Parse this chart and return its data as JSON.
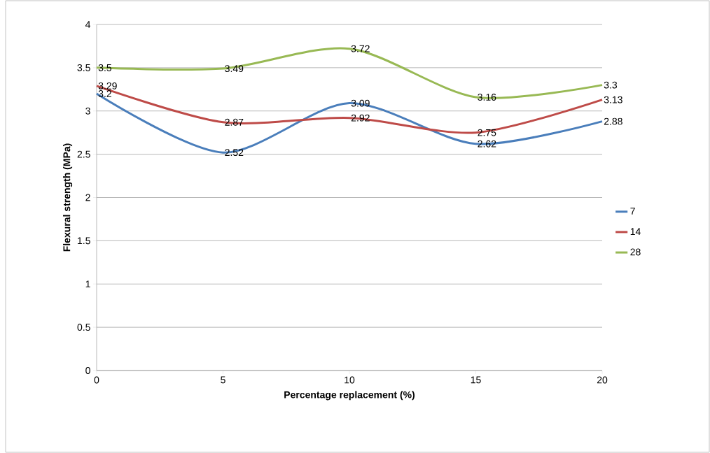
{
  "chart_data": {
    "type": "line",
    "xlabel": "Percentage replacement (%)",
    "ylabel": "Flexural strength (MPa)",
    "x": [
      0,
      5,
      10,
      15,
      20
    ],
    "series": [
      {
        "name": "7",
        "color": "#4a7ebb",
        "values": [
          3.2,
          2.52,
          3.09,
          2.62,
          2.88
        ]
      },
      {
        "name": "14",
        "color": "#be4b48",
        "values": [
          3.29,
          2.87,
          2.92,
          2.75,
          3.13
        ]
      },
      {
        "name": "28",
        "color": "#98b954",
        "values": [
          3.5,
          3.49,
          3.72,
          3.16,
          3.3
        ]
      }
    ],
    "xlim": [
      0,
      20
    ],
    "xticks": [
      0,
      5,
      10,
      15,
      20
    ],
    "ylim": [
      0,
      4
    ],
    "yticks": [
      0,
      0.5,
      1,
      1.5,
      2,
      2.5,
      3,
      3.5,
      4
    ],
    "grid": "y",
    "legend": "right",
    "data_labels": true,
    "marker": "none",
    "line_style": "solid"
  }
}
